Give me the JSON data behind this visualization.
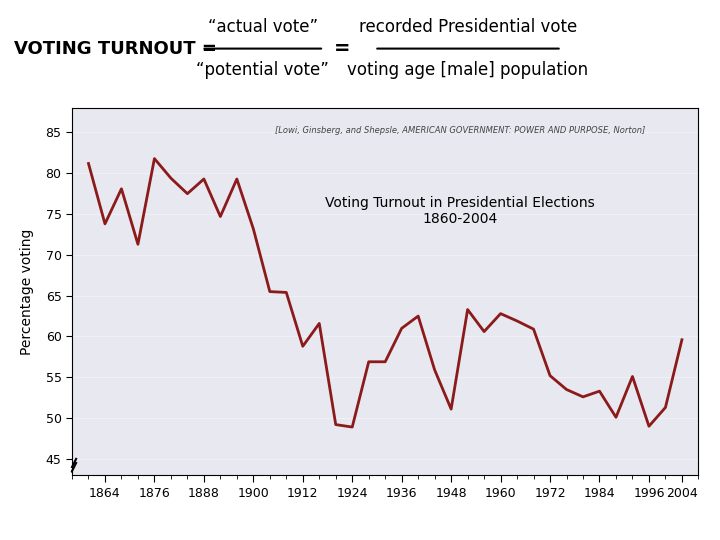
{
  "years": [
    1860,
    1864,
    1868,
    1872,
    1876,
    1880,
    1884,
    1888,
    1892,
    1896,
    1900,
    1904,
    1908,
    1912,
    1916,
    1920,
    1924,
    1928,
    1932,
    1936,
    1940,
    1944,
    1948,
    1952,
    1956,
    1960,
    1964,
    1968,
    1972,
    1976,
    1980,
    1984,
    1988,
    1992,
    1996,
    2000,
    2004
  ],
  "turnout": [
    81.2,
    73.8,
    78.1,
    71.3,
    81.8,
    79.4,
    77.5,
    79.3,
    74.7,
    79.3,
    73.2,
    65.5,
    65.4,
    58.8,
    61.6,
    49.2,
    48.9,
    56.9,
    56.9,
    61.0,
    62.5,
    55.9,
    51.1,
    63.3,
    60.6,
    62.8,
    61.9,
    60.9,
    55.2,
    53.5,
    52.6,
    53.3,
    50.1,
    55.1,
    49.0,
    51.3,
    59.6
  ],
  "line_color": "#8B1A1A",
  "line_width": 2.0,
  "bg_color": "#E8E8F0",
  "chart_title": "Voting Turnout in Presidential Elections\n1860-2004",
  "source_text": "[Lowi, Ginsberg, and Shepsle, AMERICAN GOVERNMENT: POWER AND PURPOSE, Norton]",
  "ylabel": "Percentage voting",
  "ylim": [
    43,
    88
  ],
  "yticks": [
    45,
    50,
    55,
    60,
    65,
    70,
    75,
    80,
    85
  ],
  "xlim": [
    1856,
    2008
  ],
  "xticks": [
    1864,
    1876,
    1888,
    1900,
    1912,
    1924,
    1936,
    1948,
    1960,
    1972,
    1984,
    1996,
    2004
  ],
  "header_left": "VOTING TURNOUT = ",
  "header_frac_num": "“actual vote”",
  "header_frac_den": "“potential vote”",
  "header_eq": "=",
  "header_right_num": "recorded Presidential vote",
  "header_right_den": "voting age [male] population"
}
